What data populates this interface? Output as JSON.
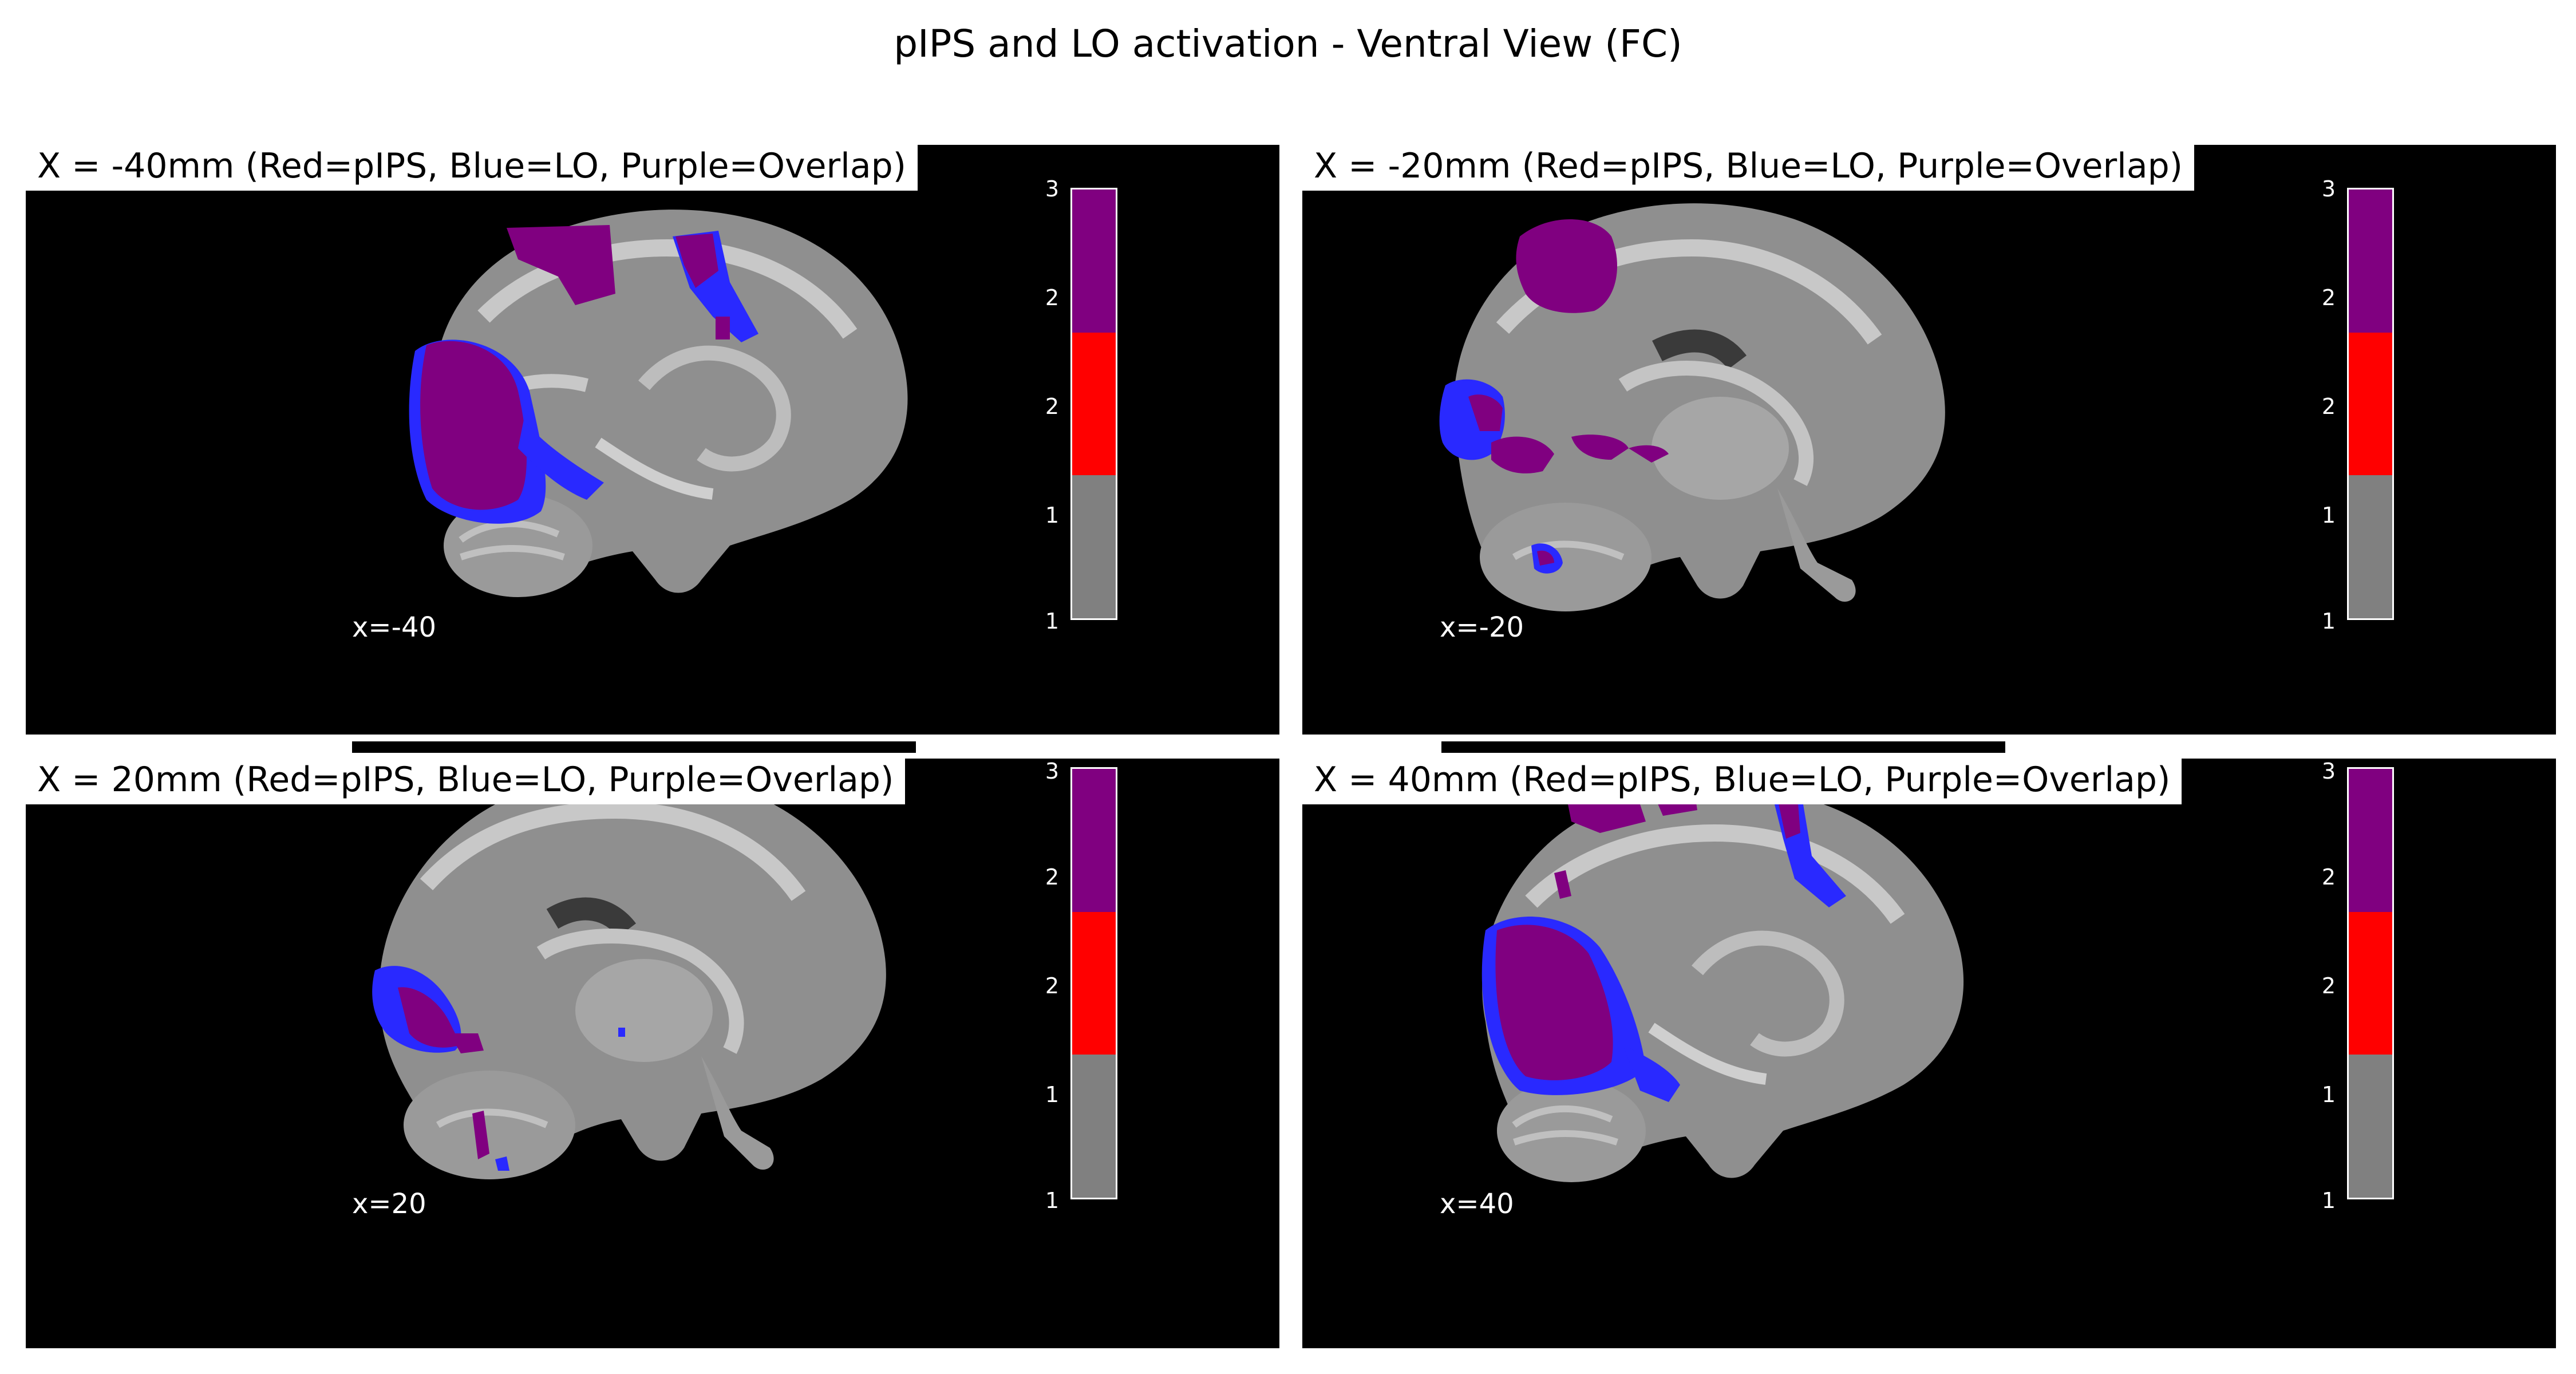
{
  "title": "pIPS and LO activation - Ventral View (FC)",
  "colors": {
    "pips": "#ff0000",
    "lo": "#2929ff",
    "overlap": "#800080",
    "base": "#808080"
  },
  "panels": [
    {
      "title": "X = -40mm (Red=pIPS, Blue=LO, Purple=Overlap)",
      "coord": "x=-40",
      "ticks": [
        "3",
        "2",
        "2",
        "1",
        "1"
      ]
    },
    {
      "title": "X = -20mm (Red=pIPS, Blue=LO, Purple=Overlap)",
      "coord": "x=-20",
      "ticks": [
        "3",
        "2",
        "2",
        "1",
        "1"
      ]
    },
    {
      "title": "X = 20mm (Red=pIPS, Blue=LO, Purple=Overlap)",
      "coord": "x=20",
      "ticks": [
        "3",
        "2",
        "2",
        "1",
        "1"
      ]
    },
    {
      "title": "X = 40mm (Red=pIPS, Blue=LO, Purple=Overlap)",
      "coord": "x=40",
      "ticks": [
        "3",
        "2",
        "2",
        "1",
        "1"
      ]
    }
  ]
}
